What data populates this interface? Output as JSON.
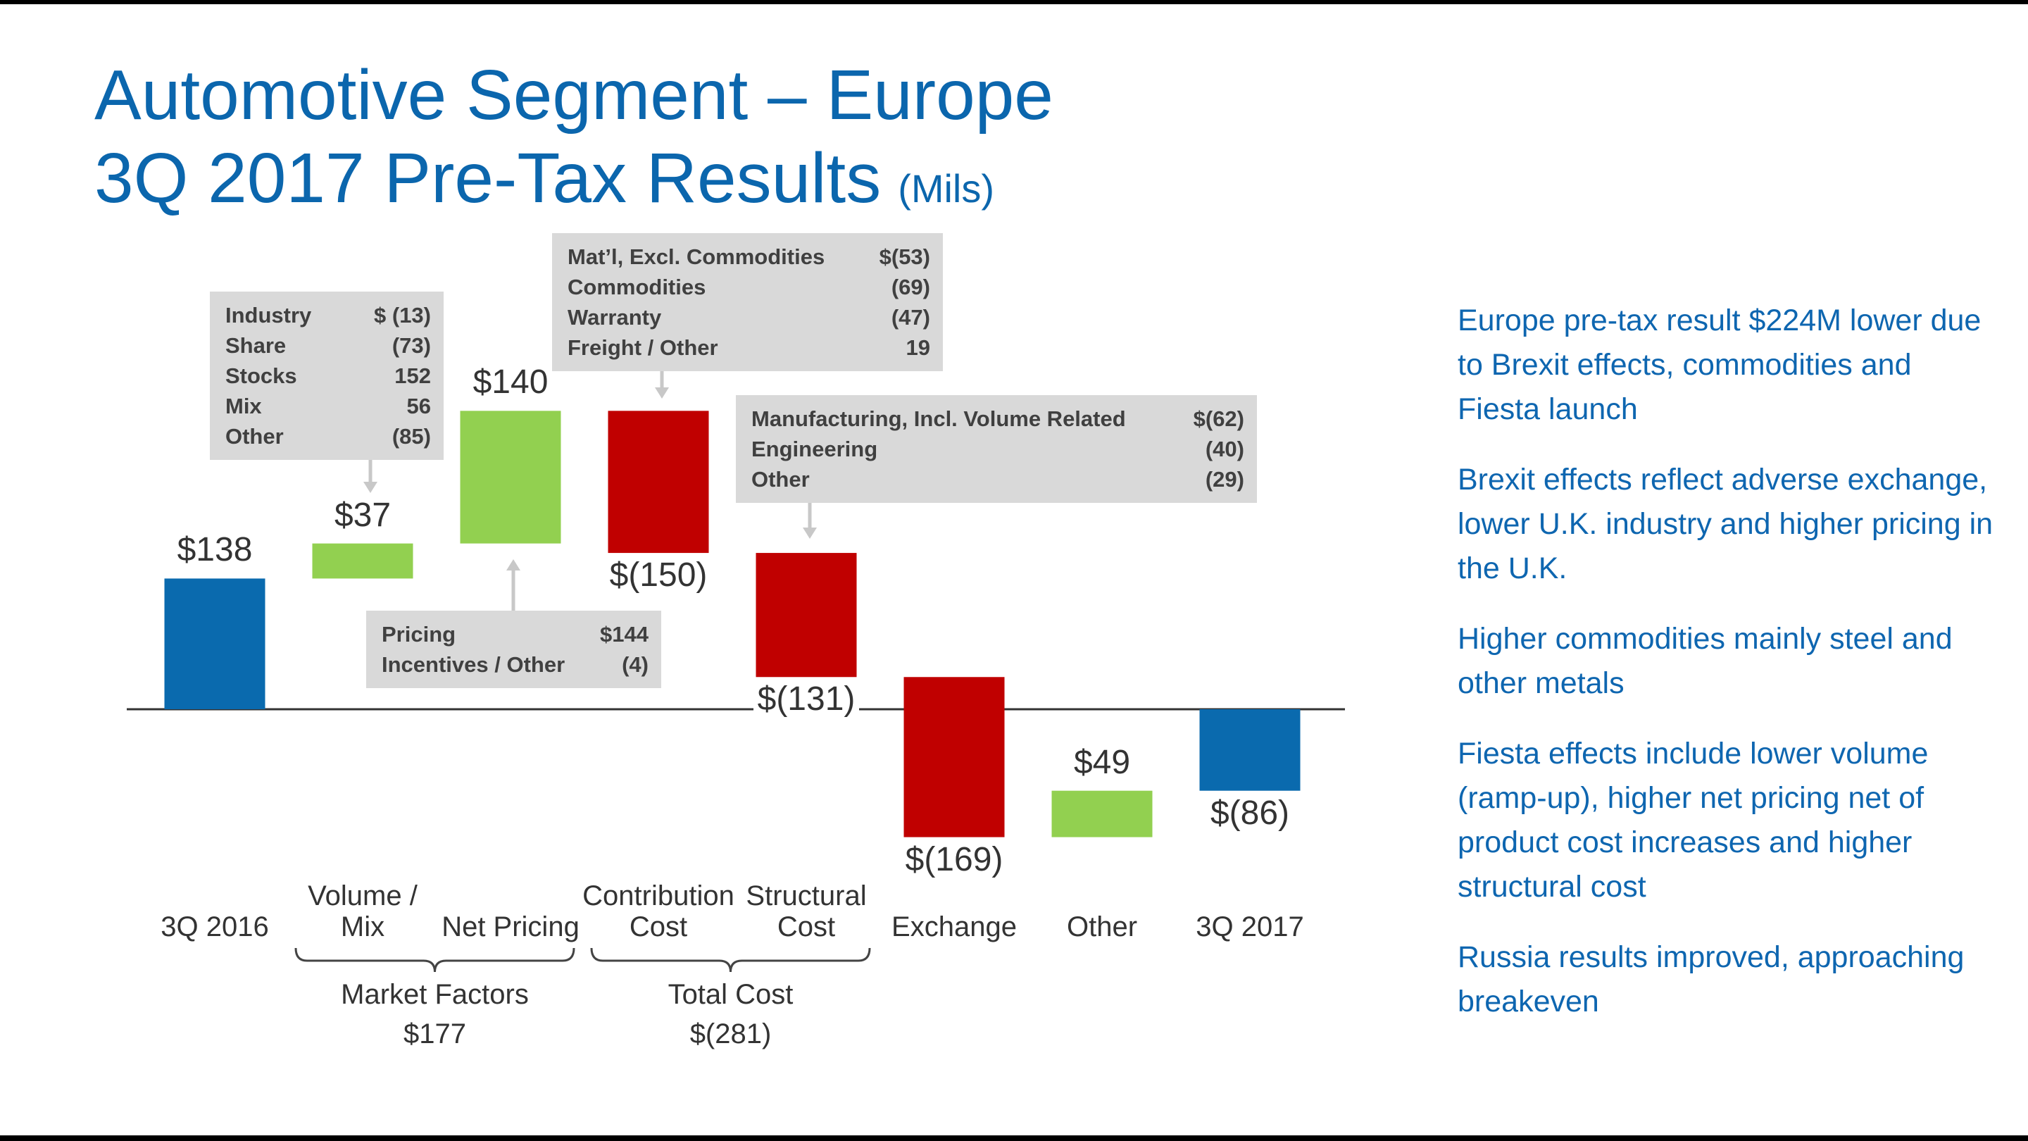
{
  "chart_data": {
    "type": "waterfall",
    "title": [
      "Automotive Segment – Europe",
      "3Q 2017 Pre-Tax Results"
    ],
    "subtitle": "(Mils)",
    "categories": [
      "3Q 2016",
      "Volume / Mix",
      "Net Pricing",
      "Contribution Cost",
      "Structural Cost",
      "Exchange",
      "Other",
      "3Q 2017"
    ],
    "values": [
      138,
      37,
      140,
      -150,
      -131,
      -169,
      49,
      -86
    ],
    "value_labels": [
      "$138",
      "$37",
      "$140",
      "$(150)",
      "$(131)",
      "$(169)",
      "$49",
      "$(86)"
    ],
    "colors": [
      "#0a6aae",
      "#92d050",
      "#92d050",
      "#c00000",
      "#c00000",
      "#c00000",
      "#92d050",
      "#0a6aae"
    ],
    "groups": [
      {
        "label": "Market Factors",
        "value": 177,
        "value_label": "$177"
      },
      {
        "label": "Total Cost",
        "value": -281,
        "value_label": "$(281)"
      }
    ],
    "callouts": [
      {
        "rows": [
          {
            "label": "Industry",
            "value": "$ (13)"
          },
          {
            "label": "Share",
            "value": "(73)"
          },
          {
            "label": "Stocks",
            "value": "152"
          },
          {
            "label": "Mix",
            "value": "56"
          },
          {
            "label": "Other",
            "value": "(85)"
          }
        ]
      },
      {
        "rows": [
          {
            "label": "Pricing",
            "value": "$144"
          },
          {
            "label": "Incentives / Other",
            "value": "(4)"
          }
        ]
      },
      {
        "rows": [
          {
            "label": "Mat’l, Excl. Commodities",
            "value": "$(53)"
          },
          {
            "label": "Commodities",
            "value": "(69)"
          },
          {
            "label": "Warranty",
            "value": "(47)"
          },
          {
            "label": "Freight / Other",
            "value": "19"
          }
        ]
      },
      {
        "rows": [
          {
            "label": "Manufacturing, Incl. Volume Related",
            "value": "$(62)"
          },
          {
            "label": "Engineering",
            "value": "(40)"
          },
          {
            "label": "Other",
            "value": "(29)"
          }
        ]
      }
    ]
  },
  "notes": [
    "Europe pre-tax result $224M lower due to Brexit effects, commodities and Fiesta launch",
    "Brexit effects reflect adverse exchange, lower U.K. industry and higher pricing in the U.K.",
    "Higher commodities mainly steel and other metals",
    "Fiesta effects include lower volume (ramp-up), higher net pricing net of product cost increases and higher structural cost",
    "Russia results improved, approaching breakeven"
  ]
}
